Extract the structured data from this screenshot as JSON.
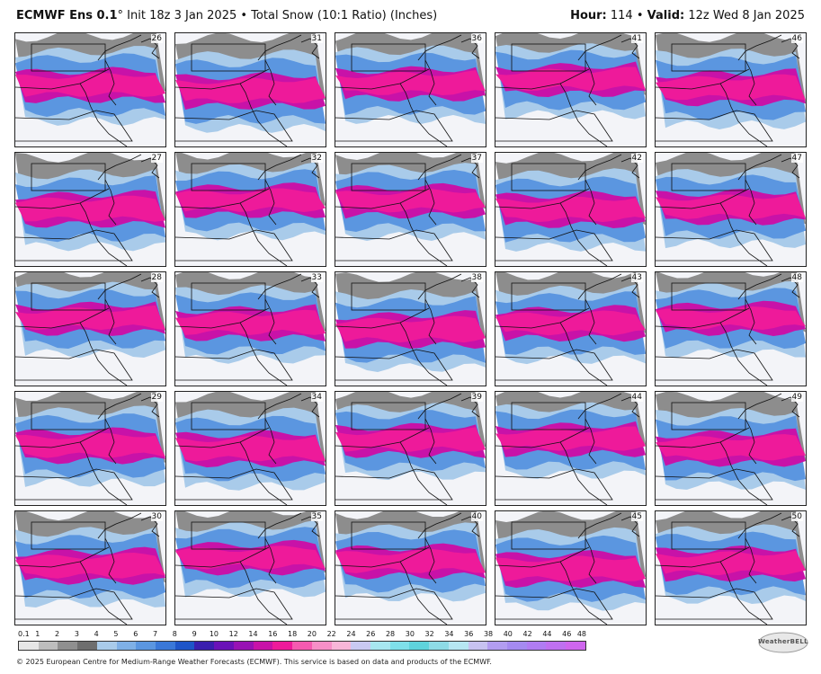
{
  "header": {
    "model": "ECMWF Ens 0.1",
    "degree": "°",
    "init": "Init 18z 3 Jan 2025",
    "separator": "•",
    "product": "Total Snow (10:1 Ratio) (Inches)",
    "hour_label": "Hour:",
    "hour": "114",
    "valid_label": "Valid:",
    "valid": "12z Wed 8 Jan 2025"
  },
  "panels": {
    "row1": [
      "26",
      "31",
      "36",
      "41",
      "46"
    ],
    "row2": [
      "27",
      "32",
      "37",
      "42",
      "47"
    ],
    "row3": [
      "28",
      "33",
      "38",
      "43",
      "48"
    ],
    "row4": [
      "29",
      "34",
      "39",
      "44",
      "49"
    ],
    "row5": [
      "30",
      "35",
      "40",
      "45",
      "50"
    ]
  },
  "colorbar": {
    "labels": [
      "0.1",
      "1",
      "2",
      "3",
      "4",
      "5",
      "6",
      "7",
      "8",
      "9",
      "10",
      "12",
      "14",
      "16",
      "18",
      "20",
      "22",
      "24",
      "26",
      "28",
      "30",
      "32",
      "34",
      "36",
      "38",
      "40",
      "42",
      "44",
      "46",
      "48"
    ],
    "colors": [
      "#e6e6e6",
      "#bdbdbd",
      "#8f8f8f",
      "#6e6e6e",
      "#a9cbea",
      "#7fb0e6",
      "#5b96e0",
      "#3a78d8",
      "#1e55c8",
      "#3a1fae",
      "#6a12b8",
      "#9812b4",
      "#c812a8",
      "#ee1a9a",
      "#f55ab0",
      "#f78fc7",
      "#f8b6d8",
      "#c9c9f2",
      "#a7e7f0",
      "#7fe0ea",
      "#5fd3dc",
      "#8edbe6",
      "#b6e6f2",
      "#c7c2f0",
      "#b29df0",
      "#a58af0",
      "#b07cf2",
      "#bf70f0",
      "#cf66ee"
    ]
  },
  "logo": {
    "text": "WeatherBELL"
  },
  "footer": {
    "text": "© 2025 European Centre for Medium-Range Weather Forecasts (ECMWF). This service is based on data and products of the ECMWF."
  },
  "colors": {
    "pink": "#ee1a9a",
    "magenta": "#c812a8",
    "blue": "#5b96e0",
    "light_blue": "#a9cbea",
    "gray": "#7a7a7a",
    "background": "#f3f4f8"
  }
}
